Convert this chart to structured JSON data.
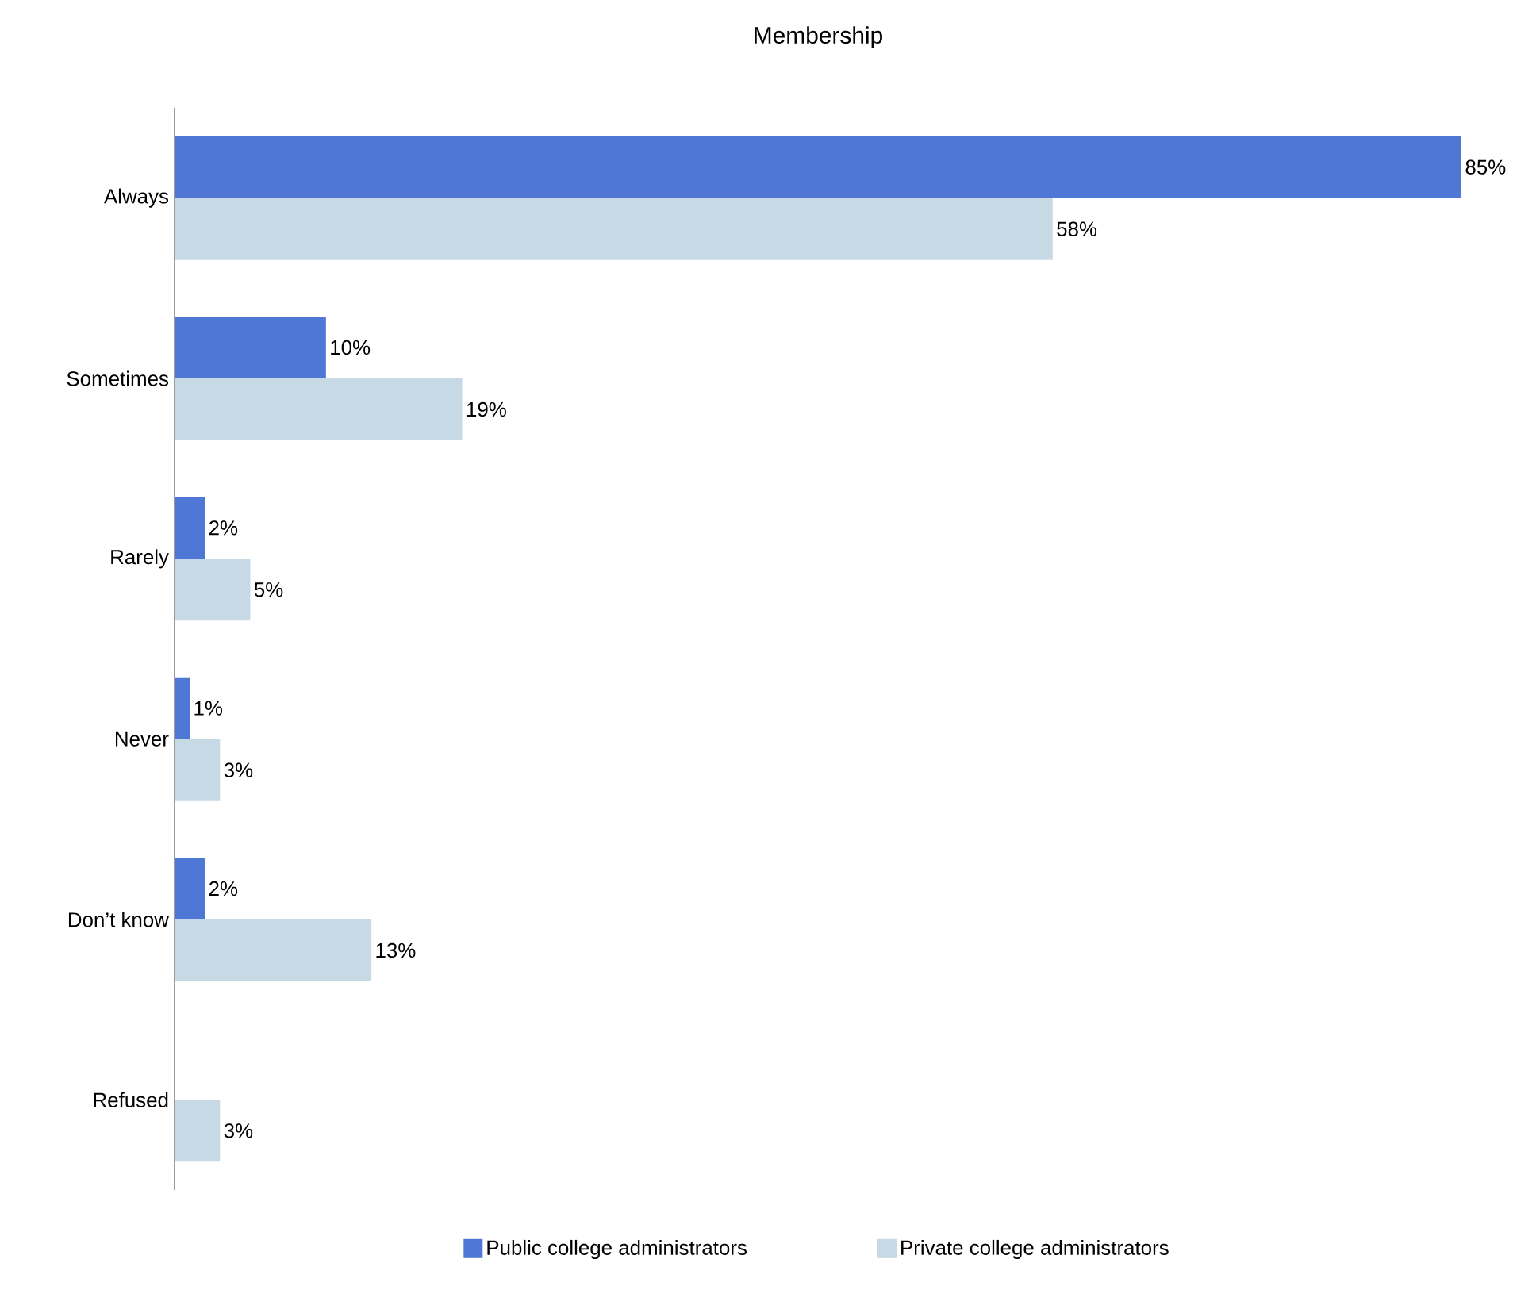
{
  "chart_data": {
    "type": "bar",
    "orientation": "horizontal",
    "title": "Membership",
    "categories": [
      "Always",
      "Sometimes",
      "Rarely",
      "Never",
      "Don’t know",
      "Refused"
    ],
    "series": [
      {
        "name": "Public college administrators",
        "color": "#4e77d6",
        "values": [
          85,
          10,
          2,
          1,
          2,
          null
        ],
        "value_labels": [
          "85%",
          "10%",
          "2%",
          "1%",
          "2%",
          null
        ]
      },
      {
        "name": "Private college administrators",
        "color": "#c8d9e6",
        "values": [
          58,
          19,
          5,
          3,
          13,
          3
        ],
        "value_labels": [
          "58%",
          "19%",
          "5%",
          "3%",
          "13%",
          "3%"
        ]
      }
    ],
    "legend": "bottom"
  }
}
